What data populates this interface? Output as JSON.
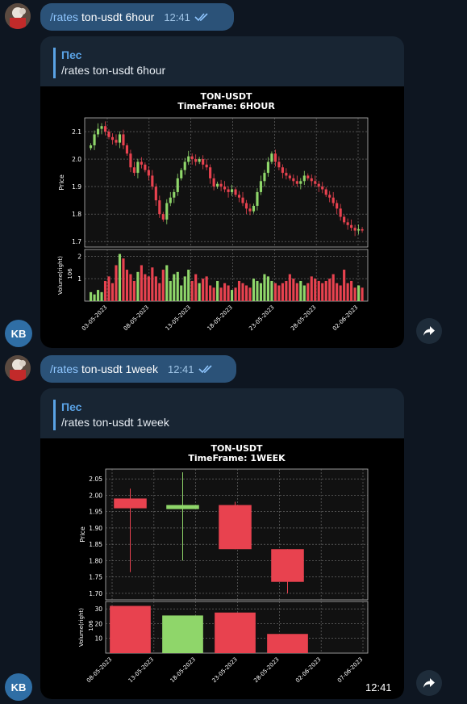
{
  "messages": [
    {
      "out": {
        "cmd": "/rates",
        "rest": "ton-usdt 6hour",
        "time": "12:41"
      },
      "reply": {
        "quote_name": "Пес",
        "quote_text": "/rates ton-usdt 6hour"
      },
      "sender_initials": "KB"
    },
    {
      "out": {
        "cmd": "/rates",
        "rest": "ton-usdt 1week",
        "time": "12:41"
      },
      "reply": {
        "quote_name": "Пес",
        "quote_text": "/rates ton-usdt 1week",
        "time": "12:41"
      },
      "sender_initials": "KB"
    }
  ],
  "colors": {
    "up": "#8fd66a",
    "down": "#e8424f",
    "bg": "#0e1621",
    "accent": "#5aa3e6"
  },
  "icons": {
    "read_receipt": "double-check-icon",
    "forward": "share-arrow-icon"
  },
  "chart_data": [
    {
      "type": "candlestick",
      "title": "TON-USDT",
      "subtitle": "TimeFrame: 6HOUR",
      "ylabel": "Price",
      "ylabel2": "Volume(right)",
      "volume_exponent": "10^6",
      "ylim": [
        1.68,
        2.15
      ],
      "yticks": [
        "1.7",
        "1.8",
        "1.9",
        "2.0",
        "2.1"
      ],
      "vol_ylim": [
        0,
        2.3
      ],
      "vol_yticks": [
        "1",
        "2"
      ],
      "xticks": [
        "03-05-2023",
        "08-05-2023",
        "13-05-2023",
        "18-05-2023",
        "23-05-2023",
        "28-05-2023",
        "02-06-2023"
      ],
      "close_path": [
        2.05,
        2.09,
        2.11,
        2.12,
        2.1,
        2.08,
        2.07,
        2.06,
        2.09,
        2.05,
        2.02,
        1.97,
        1.95,
        1.99,
        1.98,
        1.96,
        1.94,
        1.9,
        1.85,
        1.8,
        1.78,
        1.84,
        1.86,
        1.88,
        1.93,
        1.96,
        1.99,
        2.01,
        2.0,
        1.99,
        2.0,
        1.98,
        1.97,
        1.93,
        1.9,
        1.91,
        1.9,
        1.89,
        1.88,
        1.89,
        1.87,
        1.86,
        1.84,
        1.82,
        1.81,
        1.83,
        1.88,
        1.92,
        1.95,
        1.99,
        2.02,
        1.99,
        1.97,
        1.95,
        1.94,
        1.93,
        1.92,
        1.91,
        1.92,
        1.94,
        1.93,
        1.92,
        1.91,
        1.9,
        1.89,
        1.87,
        1.86,
        1.84,
        1.82,
        1.79,
        1.77,
        1.76,
        1.75,
        1.74,
        1.745,
        1.74
      ],
      "volumes_path": [
        0.4,
        0.3,
        0.5,
        0.4,
        0.9,
        1.1,
        0.8,
        1.6,
        2.1,
        1.9,
        1.4,
        1.2,
        0.9,
        1.3,
        1.6,
        1.2,
        1.1,
        1.5,
        1.1,
        0.8,
        1.4,
        1.6,
        0.9,
        1.2,
        1.3,
        0.7,
        1.1,
        1.4,
        0.9,
        1.2,
        0.8,
        1.0,
        1.1,
        0.7,
        0.6,
        0.9,
        0.6,
        0.8,
        0.7,
        0.5,
        0.6,
        0.9,
        0.8,
        0.7,
        0.6,
        1.0,
        0.9,
        0.8,
        1.2,
        1.1,
        0.9,
        0.8,
        0.7,
        0.8,
        0.9,
        1.2,
        1.0,
        0.8,
        0.9,
        0.7,
        0.8,
        1.1,
        1.0,
        0.9,
        0.8,
        0.9,
        1.0,
        1.2,
        0.8,
        0.7,
        1.4,
        0.8,
        0.9,
        0.6,
        0.7,
        0.6
      ]
    },
    {
      "type": "candlestick",
      "title": "TON-USDT",
      "subtitle": "TimeFrame: 1WEEK",
      "ylabel": "Price",
      "ylabel2": "Volume(right)",
      "volume_exponent": "10^6",
      "ylim": [
        1.68,
        2.08
      ],
      "yticks": [
        "1.70",
        "1.75",
        "1.80",
        "1.85",
        "1.90",
        "1.95",
        "2.00",
        "2.05"
      ],
      "vol_ylim": [
        0,
        35
      ],
      "vol_yticks": [
        "10",
        "20",
        "30"
      ],
      "xticks": [
        "08-05-2023",
        "13-05-2023",
        "18-05-2023",
        "23-05-2023",
        "28-05-2023",
        "02-06-2023",
        "07-06-2023"
      ],
      "candles": [
        {
          "open": 1.99,
          "close": 1.96,
          "high": 2.02,
          "low": 1.765,
          "volume": 32
        },
        {
          "open": 1.96,
          "close": 1.97,
          "high": 2.07,
          "low": 1.8,
          "volume": 25.5
        },
        {
          "open": 1.97,
          "close": 1.835,
          "high": 1.98,
          "low": 1.835,
          "volume": 27.5
        },
        {
          "open": 1.835,
          "close": 1.735,
          "high": 1.835,
          "low": 1.7,
          "volume": 13
        }
      ]
    }
  ]
}
